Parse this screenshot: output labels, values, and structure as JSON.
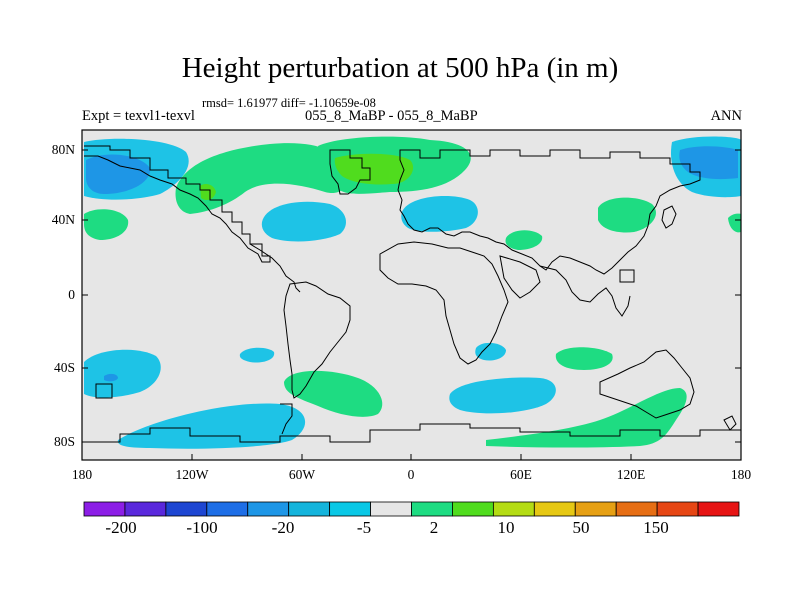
{
  "title": "Height perturbation at 500 hPa (in m)",
  "stats": "rmsd= 1.61977 diff= -1.10659e-08",
  "subtitle_left": "Expt = texvl1-texvl",
  "subtitle_center": "055_8_MaBP - 055_8_MaBP",
  "subtitle_right": "ANN",
  "y_ticks": [
    "80N",
    "40N",
    "0",
    "40S",
    "80S"
  ],
  "x_ticks": [
    "180",
    "120W",
    "60W",
    "0",
    "60E",
    "120E",
    "180"
  ],
  "colorbar": {
    "colors": [
      "#8c1ee6",
      "#5a28dc",
      "#1e46d2",
      "#1e6ee6",
      "#1e96e6",
      "#14b4dc",
      "#0ac8e6",
      "#e6e6e6",
      "#1edc82",
      "#50dc1e",
      "#b4dc14",
      "#e6c814",
      "#e6a014",
      "#e66e14",
      "#e64614",
      "#e61414"
    ],
    "labels": [
      "-200",
      "-100",
      "-20",
      "-5",
      "2",
      "10",
      "50",
      "150"
    ]
  },
  "map_colors": {
    "ocean": "#e6e6e6",
    "neg_light": "#1ec3e6",
    "neg_dark": "#1e96e6",
    "pos": "#1edc82",
    "pos_strong": "#50dc1e"
  }
}
